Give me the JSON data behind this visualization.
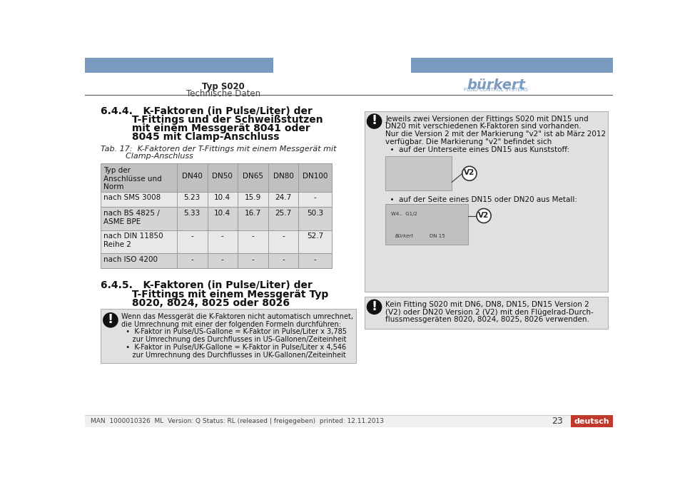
{
  "page_bg": "#ffffff",
  "header_bar_color": "#7a9bbf",
  "header_text_bold": "Typ S020",
  "header_text_normal": "Technische Daten",
  "burkert_text": "bürkert",
  "burkert_sub": "FLUID CONTROL SYSTEMS",
  "table_header_row": [
    "Typ der\nAnschlüsse und\nNorm",
    "DN40",
    "DN50",
    "DN65",
    "DN80",
    "DN100"
  ],
  "table_rows": [
    [
      "nach SMS 3008",
      "5.23",
      "10.4",
      "15.9",
      "24.7",
      "-"
    ],
    [
      "nach BS 4825 /\nASME BPE",
      "5.33",
      "10.4",
      "16.7",
      "25.7",
      "50.3"
    ],
    [
      "nach DIN 11850\nReihe 2",
      "-",
      "-",
      "-",
      "-",
      "52.7"
    ],
    [
      "nach ISO 4200",
      "-",
      "-",
      "-",
      "-",
      "-"
    ]
  ],
  "table_header_bg": "#c0c0c0",
  "table_row_bg_odd": "#e8e8e8",
  "table_row_bg_even": "#d4d4d4",
  "table_border_color": "#999999",
  "warning_bg": "#e0e0e0",
  "footer_text": "MAN  1000010326  ML  Version: Q Status: RL (released | freigegeben)  printed: 12.11.2013",
  "footer_right_bg": "#c0392b",
  "footer_right_text": "deutsch",
  "page_number": "23",
  "divider_color": "#555555"
}
